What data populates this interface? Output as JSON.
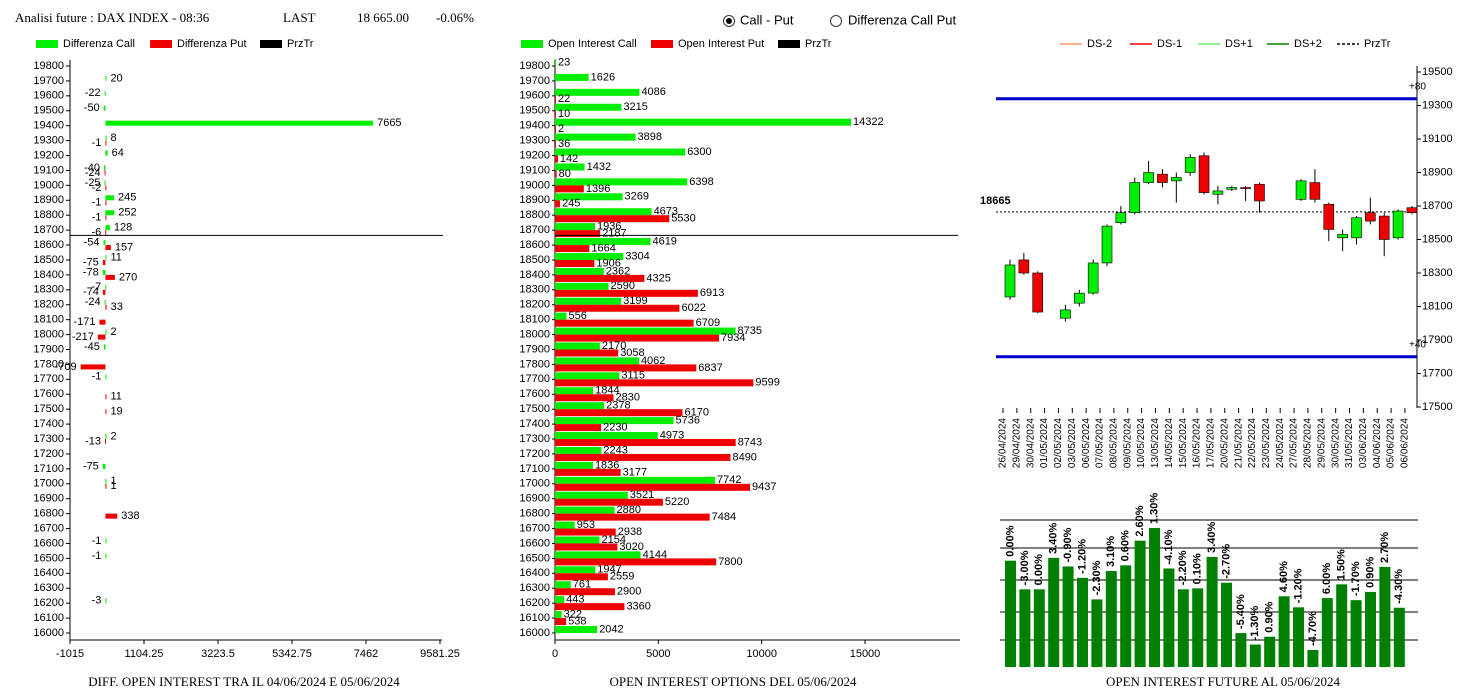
{
  "header": {
    "title": "Analisi future : DAX INDEX - 08:36",
    "last_label": "LAST",
    "last": "18 665.00",
    "change": "-0.06%",
    "options": [
      "Call - Put",
      "Differenza Call Put"
    ],
    "selected": 0
  },
  "chart_data": [
    {
      "type": "hbar",
      "title": "DIFF. OPEN INTEREST TRA IL 04/06/2024 E 05/06/2024",
      "categories": [
        "19800",
        "19700",
        "19600",
        "19500",
        "19400",
        "19300",
        "19200",
        "19100",
        "19000",
        "18900",
        "18800",
        "18700",
        "18600",
        "18500",
        "18400",
        "18300",
        "18200",
        "18100",
        "18000",
        "17900",
        "17800",
        "17700",
        "17600",
        "17500",
        "17400",
        "17300",
        "17200",
        "17100",
        "17000",
        "16900",
        "16800",
        "16700",
        "16600",
        "16500",
        "16400",
        "16300",
        "16200",
        "16100",
        "16000"
      ],
      "series": [
        {
          "name": "Differenza Call",
          "color": "#00ee00",
          "values": [
            null,
            20,
            -22,
            -50,
            7665,
            8,
            64,
            -40,
            -25,
            245,
            252,
            128,
            -54,
            11,
            -78,
            -7,
            -24,
            null,
            2,
            -45,
            null,
            -1,
            null,
            null,
            null,
            2,
            null,
            -75,
            1,
            null,
            null,
            null,
            -1,
            -1,
            null,
            null,
            -3,
            null,
            null
          ]
        },
        {
          "name": "Differenza Put",
          "color": "#ee0000",
          "values": [
            null,
            null,
            null,
            null,
            null,
            -1,
            null,
            -24,
            -2,
            -1,
            -1,
            -6,
            157,
            -75,
            270,
            -74,
            33,
            -171,
            -217,
            null,
            -709,
            null,
            11,
            19,
            null,
            -13,
            null,
            null,
            1,
            null,
            338,
            null,
            null,
            null,
            null,
            null,
            null,
            null,
            null
          ]
        }
      ],
      "reference": {
        "name": "PrzTr",
        "color": "#000000",
        "value": 18665
      },
      "xlim": [
        -1015,
        9581.25
      ],
      "xticks": [
        -1015,
        1104.25,
        3223.5,
        5342.75,
        7462,
        9581.25
      ]
    },
    {
      "type": "hbar",
      "title": "OPEN INTEREST OPTIONS DEL 05/06/2024",
      "categories": [
        "19800",
        "19700",
        "19600",
        "19500",
        "19400",
        "19300",
        "19200",
        "19100",
        "19000",
        "18900",
        "18800",
        "18700",
        "18600",
        "18500",
        "18400",
        "18300",
        "18200",
        "18100",
        "18000",
        "17900",
        "17800",
        "17700",
        "17600",
        "17500",
        "17400",
        "17300",
        "17200",
        "17100",
        "17000",
        "16900",
        "16800",
        "16700",
        "16600",
        "16500",
        "16400",
        "16300",
        "16200",
        "16100",
        "16000"
      ],
      "series": [
        {
          "name": "Open Interest Call",
          "color": "#00ee00",
          "values": [
            23,
            1626,
            4086,
            3215,
            14322,
            3898,
            6300,
            1432,
            6398,
            3269,
            4673,
            1936,
            4619,
            3304,
            2362,
            2590,
            3199,
            556,
            8735,
            2170,
            4062,
            3115,
            1844,
            2378,
            5736,
            4973,
            2243,
            1836,
            7742,
            3521,
            2880,
            953,
            2154,
            4144,
            1947,
            761,
            443,
            322,
            2042
          ]
        },
        {
          "name": "Open Interest Put",
          "color": "#ee0000",
          "values": [
            null,
            null,
            22,
            10,
            2,
            36,
            142,
            80,
            1396,
            245,
            5530,
            2187,
            1664,
            1906,
            4325,
            6913,
            6022,
            6709,
            7934,
            3058,
            6837,
            9599,
            2830,
            6170,
            2230,
            8743,
            8490,
            3177,
            9437,
            5220,
            7484,
            2938,
            3020,
            7800,
            2559,
            2900,
            3360,
            538,
            null
          ]
        }
      ],
      "reference": {
        "name": "PrzTr",
        "color": "#000000",
        "value": 18665
      },
      "xlim": [
        0,
        19500
      ],
      "xticks": [
        0,
        5000,
        10000,
        15000
      ]
    },
    {
      "type": "candlestick",
      "x": [
        "26/04/2024",
        "29/04/2024",
        "30/04/2024",
        "01/05/2024",
        "02/05/2024",
        "03/05/2024",
        "06/05/2024",
        "07/05/2024",
        "08/05/2024",
        "09/05/2024",
        "10/05/2024",
        "13/05/2024",
        "14/05/2024",
        "15/05/2024",
        "16/05/2024",
        "17/05/2024",
        "20/05/2024",
        "21/05/2024",
        "22/05/2024",
        "23/05/2024",
        "24/05/2024",
        "27/05/2024",
        "28/05/2024",
        "29/05/2024",
        "30/05/2024",
        "31/05/2024",
        "03/06/2024",
        "04/06/2024",
        "05/06/2024",
        "06/06/2024"
      ],
      "open": [
        18157,
        18378,
        18300,
        null,
        18030,
        18120,
        18180,
        18360,
        18600,
        18660,
        18840,
        18890,
        18850,
        18900,
        19000,
        18770,
        18800,
        18810,
        18830,
        null,
        null,
        18740,
        18840,
        18710,
        18510,
        18510,
        18660,
        18640,
        18510,
        18690
      ],
      "high": [
        18380,
        18420,
        18310,
        null,
        18110,
        18200,
        18380,
        18590,
        18700,
        18870,
        18970,
        18920,
        18900,
        19010,
        19020,
        18820,
        18820,
        18820,
        18840,
        null,
        null,
        18860,
        18920,
        18720,
        18560,
        18640,
        18750,
        18660,
        18680,
        18700
      ],
      "low": [
        18140,
        18290,
        18060,
        null,
        18010,
        18100,
        18170,
        18340,
        18590,
        18650,
        18830,
        18810,
        18720,
        18880,
        18770,
        18710,
        18790,
        18730,
        18660,
        null,
        null,
        18730,
        18720,
        18490,
        18430,
        18470,
        18590,
        18400,
        18500,
        18650
      ],
      "close": [
        18348,
        18300,
        18067,
        null,
        18080,
        18180,
        18360,
        18580,
        18660,
        18840,
        18900,
        18840,
        18870,
        18990,
        18780,
        18790,
        18810,
        18805,
        18730,
        null,
        null,
        18850,
        18740,
        18560,
        18530,
        18630,
        18610,
        18500,
        18670,
        18660
      ],
      "up_color": "#00ee00",
      "down_color": "#ee0000",
      "ylim": [
        17500,
        19500
      ],
      "yticks": [
        17500,
        17700,
        17900,
        18100,
        18300,
        18500,
        18700,
        18900,
        19100,
        19300,
        19500
      ],
      "hlines": [
        {
          "value": 19340,
          "label": "+80",
          "color": "#0000cc"
        },
        {
          "value": 17800,
          "label": "+40",
          "color": "#0000cc"
        }
      ],
      "reference": 18665,
      "legend": [
        {
          "name": "DS-2",
          "color": "#ff9966"
        },
        {
          "name": "DS-1",
          "color": "#ee0000"
        },
        {
          "name": "DS+1",
          "color": "#66ee66"
        },
        {
          "name": "DS+2",
          "color": "#008000"
        },
        {
          "name": "PrzTr",
          "color": "#000000",
          "dashed": true
        }
      ]
    },
    {
      "type": "bar",
      "title": "OPEN INTEREST FUTURE AL 05/06/2024",
      "color": "#008000",
      "values": [
        0,
        -3,
        0,
        3.4,
        -0.9,
        -1.2,
        -2.3,
        3.1,
        0.6,
        2.6,
        1.3,
        -4.1,
        -2.2,
        0.1,
        3.4,
        -2.7,
        -5.4,
        -1.3,
        0.9,
        4.6,
        -1.2,
        -4.7,
        6,
        1.5,
        -1.7,
        0.9,
        2.7,
        -4.3
      ],
      "value_labels": [
        "0.00%",
        "-3.00%",
        "0.00%",
        "3.40%",
        "-0.90%",
        "-1.20%",
        "-2.30%",
        "3.10%",
        "0.60%",
        "2.60%",
        "1.30%",
        "-4.10%",
        "-2.20%",
        "0.10%",
        "3.40%",
        "-2.70%",
        "-5.40%",
        "-1.30%",
        "0.90%",
        "4.60%",
        "-1.20%",
        "-4.70%",
        "6.00%",
        "1.50%",
        "-1.70%",
        "0.90%",
        "2.70%",
        "-4.30%"
      ]
    }
  ]
}
